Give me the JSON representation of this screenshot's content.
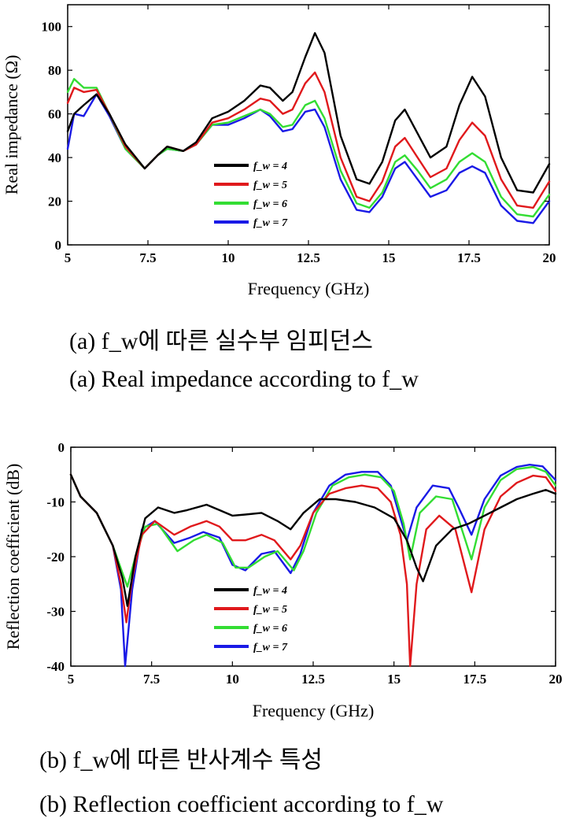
{
  "captions": {
    "a_kr": "(a) f_w에 따른 실수부 임피던스",
    "a_en": "(a) Real impedance according to f_w",
    "b_kr": "(b) f_w에 따른 반사계수 특성",
    "b_en": "(b) Reflection coefficient according to f_w"
  },
  "colors": {
    "f_w = 4": "#000000",
    "f_w = 5": "#e0191c",
    "f_w = 6": "#33dd33",
    "f_w = 7": "#1a1ae6"
  },
  "chart_data": [
    {
      "type": "line",
      "xlabel": "Frequency (GHz)",
      "ylabel": "Real impedance (Ω)",
      "xlim": [
        5,
        20
      ],
      "ylim": [
        0,
        110
      ],
      "xticks": [
        "5",
        "7.5",
        "10",
        "12.5",
        "15",
        "17.5",
        "20"
      ],
      "yticks": [
        "0",
        "20",
        "40",
        "60",
        "80",
        "100"
      ],
      "grid": false,
      "legend": "center-left",
      "series": [
        {
          "name": "f_w = 4",
          "color": "#000000",
          "x": [
            5,
            5.2,
            5.5,
            5.9,
            6.3,
            6.8,
            7.4,
            7.8,
            8.1,
            8.6,
            9.0,
            9.5,
            10.0,
            10.5,
            11.0,
            11.3,
            11.7,
            12.0,
            12.4,
            12.7,
            13.0,
            13.5,
            14.0,
            14.4,
            14.8,
            15.2,
            15.5,
            15.9,
            16.3,
            16.8,
            17.2,
            17.6,
            18.0,
            18.5,
            19.0,
            19.5,
            20.0
          ],
          "y": [
            52,
            60,
            64,
            69,
            60,
            46,
            35,
            41,
            45,
            43,
            47,
            58,
            61,
            66,
            73,
            72,
            66,
            70,
            86,
            97,
            88,
            50,
            30,
            28,
            38,
            57,
            62,
            51,
            40,
            45,
            64,
            77,
            68,
            40,
            25,
            24,
            37
          ]
        },
        {
          "name": "f_w = 5",
          "color": "#e0191c",
          "x": [
            5,
            5.2,
            5.5,
            5.9,
            6.3,
            6.8,
            7.4,
            7.8,
            8.1,
            8.6,
            9.0,
            9.5,
            10.0,
            10.5,
            11.0,
            11.3,
            11.7,
            12.0,
            12.4,
            12.7,
            13.0,
            13.5,
            14.0,
            14.4,
            14.8,
            15.2,
            15.5,
            15.9,
            16.3,
            16.8,
            17.2,
            17.6,
            18.0,
            18.5,
            19.0,
            19.5,
            20.0
          ],
          "y": [
            65,
            72,
            70,
            71,
            60,
            45,
            35,
            41,
            45,
            43,
            46,
            56,
            58,
            62,
            67,
            66,
            60,
            62,
            74,
            79,
            70,
            40,
            22,
            20,
            29,
            45,
            49,
            40,
            31,
            35,
            48,
            56,
            50,
            30,
            18,
            17,
            29
          ]
        },
        {
          "name": "f_w = 6",
          "color": "#33dd33",
          "x": [
            5,
            5.2,
            5.5,
            5.9,
            6.3,
            6.8,
            7.4,
            7.8,
            8.1,
            8.6,
            9.0,
            9.5,
            10.0,
            10.5,
            11.0,
            11.3,
            11.7,
            12.0,
            12.4,
            12.7,
            13.0,
            13.5,
            14.0,
            14.4,
            14.8,
            15.2,
            15.5,
            15.9,
            16.3,
            16.8,
            17.2,
            17.6,
            18.0,
            18.5,
            19.0,
            19.5,
            20.0
          ],
          "y": [
            70,
            76,
            72,
            72,
            60,
            44,
            35,
            41,
            44,
            43,
            46,
            55,
            56,
            59,
            62,
            60,
            54,
            55,
            64,
            66,
            58,
            34,
            19,
            17,
            24,
            38,
            41,
            34,
            26,
            30,
            38,
            42,
            38,
            22,
            14,
            13,
            23
          ]
        },
        {
          "name": "f_w = 7",
          "color": "#1a1ae6",
          "x": [
            5,
            5.2,
            5.5,
            5.9,
            6.3,
            6.8,
            7.4,
            7.8,
            8.1,
            8.6,
            9.0,
            9.5,
            10.0,
            10.5,
            11.0,
            11.3,
            11.7,
            12.0,
            12.4,
            12.7,
            13.0,
            13.5,
            14.0,
            14.4,
            14.8,
            15.2,
            15.5,
            15.9,
            16.3,
            16.8,
            17.2,
            17.6,
            18.0,
            18.5,
            19.0,
            19.5,
            20.0
          ],
          "y": [
            44,
            60,
            59,
            69,
            59,
            44,
            35,
            41,
            44,
            43,
            46,
            55,
            55,
            58,
            62,
            59,
            52,
            53,
            61,
            62,
            54,
            30,
            16,
            15,
            22,
            35,
            38,
            30,
            22,
            25,
            33,
            36,
            33,
            18,
            11,
            10,
            20
          ]
        }
      ]
    },
    {
      "type": "line",
      "xlabel": "Frequency (GHz)",
      "ylabel": "Reflection coefficient (dB)",
      "xlim": [
        5,
        20
      ],
      "ylim": [
        -40,
        0
      ],
      "xticks": [
        "5",
        "7.5",
        "10",
        "12.5",
        "15",
        "17.5",
        "20"
      ],
      "yticks": [
        "-40",
        "-30",
        "-20",
        "-10",
        "0"
      ],
      "grid": false,
      "legend": "center-left",
      "series": [
        {
          "name": "f_w = 4",
          "color": "#000000",
          "x": [
            5,
            5.3,
            5.8,
            6.3,
            6.6,
            6.75,
            7.0,
            7.3,
            7.7,
            8.2,
            8.6,
            9.2,
            9.6,
            10.0,
            10.4,
            10.9,
            11.4,
            11.8,
            12.2,
            12.7,
            13.2,
            13.8,
            14.4,
            15.0,
            15.4,
            15.7,
            15.9,
            16.3,
            16.8,
            17.3,
            17.8,
            18.3,
            18.8,
            19.3,
            19.7,
            20.0
          ],
          "y": [
            -5,
            -9,
            -12,
            -18,
            -24,
            -29,
            -20,
            -13,
            -11,
            -12,
            -11.5,
            -10.5,
            -11.5,
            -12.5,
            -12.3,
            -12,
            -13.5,
            -15,
            -12,
            -9.5,
            -9.5,
            -10,
            -11,
            -13,
            -17,
            -22,
            -24.5,
            -18,
            -15,
            -14,
            -12.5,
            -11,
            -9.5,
            -8.5,
            -7.8,
            -8.5
          ]
        },
        {
          "name": "f_w = 5",
          "color": "#e0191c",
          "x": [
            5,
            5.3,
            5.8,
            6.3,
            6.55,
            6.72,
            6.9,
            7.2,
            7.6,
            8.2,
            8.7,
            9.2,
            9.6,
            10.0,
            10.4,
            10.9,
            11.3,
            11.8,
            12.1,
            12.5,
            13.0,
            13.5,
            14.0,
            14.5,
            14.9,
            15.2,
            15.4,
            15.5,
            15.7,
            16.0,
            16.4,
            16.9,
            17.4,
            17.8,
            18.3,
            18.8,
            19.3,
            19.7,
            20.0
          ],
          "y": [
            -5,
            -9,
            -12,
            -18,
            -25,
            -32,
            -24,
            -16,
            -13.5,
            -16,
            -14.5,
            -13.5,
            -14.5,
            -17,
            -17,
            -16,
            -17,
            -20.5,
            -18,
            -12,
            -8.5,
            -7.5,
            -7,
            -7.5,
            -10,
            -16,
            -25,
            -40,
            -25,
            -15,
            -12.5,
            -15,
            -26.5,
            -15,
            -9,
            -6.5,
            -5.2,
            -5.5,
            -8
          ]
        },
        {
          "name": "f_w = 6",
          "color": "#33dd33",
          "x": [
            5,
            5.3,
            5.8,
            6.3,
            6.6,
            6.75,
            7.0,
            7.3,
            7.7,
            8.3,
            8.8,
            9.2,
            9.7,
            10.1,
            10.5,
            11.0,
            11.4,
            11.9,
            12.2,
            12.6,
            13.1,
            13.6,
            14.1,
            14.6,
            15.0,
            15.3,
            15.5,
            15.8,
            16.3,
            16.8,
            17.4,
            17.8,
            18.3,
            18.8,
            19.3,
            19.7,
            20.0
          ],
          "y": [
            -5,
            -9,
            -12,
            -18,
            -23,
            -25.5,
            -20,
            -14.5,
            -14,
            -19,
            -17,
            -16,
            -17.5,
            -22,
            -22,
            -20,
            -19,
            -22.5,
            -19,
            -12,
            -7,
            -5.5,
            -5,
            -5.5,
            -8,
            -14,
            -20.5,
            -12,
            -9,
            -9.5,
            -20.5,
            -11,
            -6,
            -4,
            -3.6,
            -4.5,
            -7
          ]
        },
        {
          "name": "f_w = 7",
          "color": "#1a1ae6",
          "x": [
            5,
            5.3,
            5.8,
            6.3,
            6.55,
            6.68,
            6.9,
            7.2,
            7.6,
            8.2,
            8.7,
            9.1,
            9.6,
            10.0,
            10.4,
            10.9,
            11.3,
            11.8,
            12.1,
            12.5,
            13.0,
            13.5,
            14.0,
            14.5,
            14.9,
            15.2,
            15.4,
            15.7,
            16.2,
            16.7,
            17.0,
            17.4,
            17.8,
            18.3,
            18.8,
            19.2,
            19.6,
            20.0
          ],
          "y": [
            -5,
            -9,
            -12,
            -18,
            -26,
            -40,
            -26,
            -15,
            -13.5,
            -17.5,
            -16.5,
            -15.5,
            -16.5,
            -21.5,
            -22.5,
            -19.5,
            -19,
            -23,
            -19.5,
            -12,
            -7,
            -5,
            -4.5,
            -4.5,
            -7,
            -13,
            -17,
            -11,
            -7,
            -7.5,
            -11,
            -16,
            -9.5,
            -5.2,
            -3.6,
            -3.2,
            -3.5,
            -6
          ]
        }
      ]
    }
  ]
}
